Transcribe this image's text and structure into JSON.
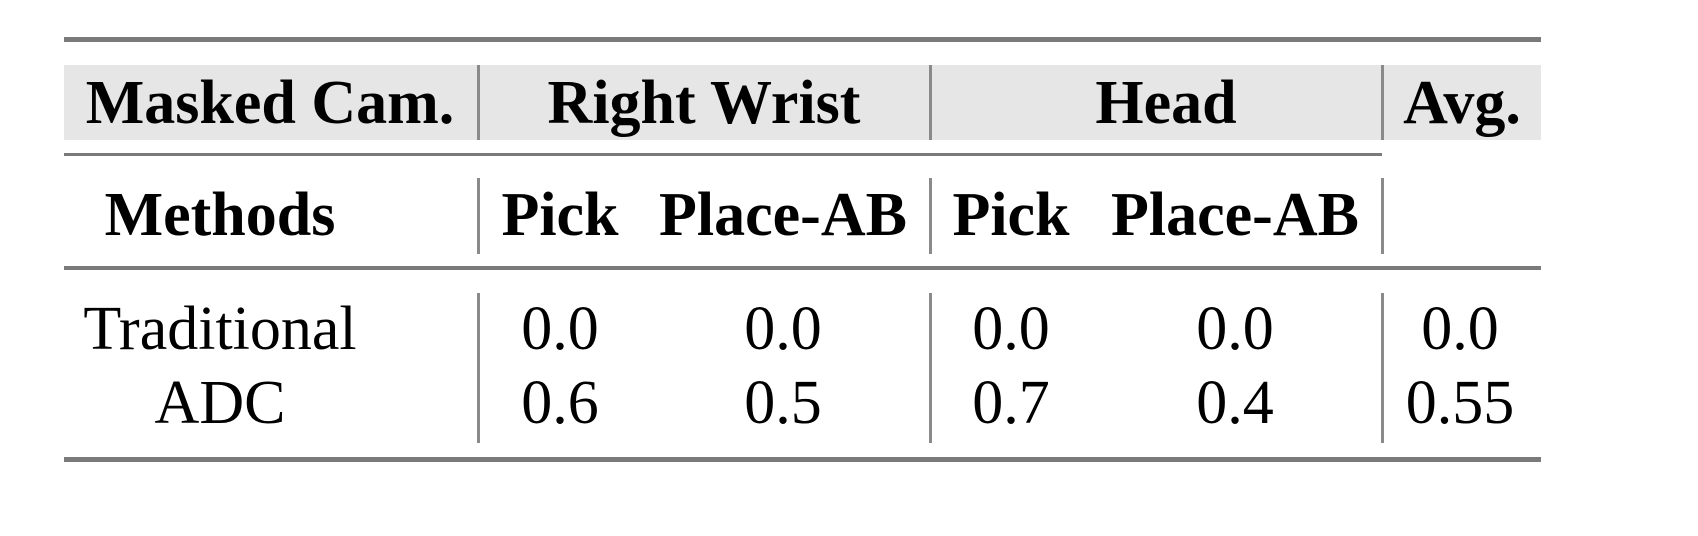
{
  "table": {
    "header_row1": {
      "masked_cam": "Masked Cam.",
      "group1": "Right Wrist",
      "group2": "Head",
      "avg": "Avg."
    },
    "header_row2": {
      "methods": "Methods",
      "cols": [
        "Pick",
        "Place-AB",
        "Pick",
        "Place-AB"
      ]
    },
    "rows": [
      {
        "method": "Traditional",
        "values": [
          "0.0",
          "0.0",
          "0.0",
          "0.0",
          "0.0"
        ]
      },
      {
        "method": "ADC",
        "values": [
          "0.6",
          "0.5",
          "0.7",
          "0.4",
          "0.55"
        ]
      }
    ]
  },
  "chart_data": {
    "type": "table",
    "columns": [
      "Right Wrist / Pick",
      "Right Wrist / Place-AB",
      "Head / Pick",
      "Head / Place-AB",
      "Avg."
    ],
    "rows": [
      {
        "name": "Traditional",
        "values": [
          0.0,
          0.0,
          0.0,
          0.0,
          0.0
        ]
      },
      {
        "name": "ADC",
        "values": [
          0.6,
          0.5,
          0.7,
          0.4,
          0.55
        ]
      }
    ]
  },
  "colors": {
    "header_background": "#e6e6e6",
    "rules": "#7a7a7a"
  }
}
